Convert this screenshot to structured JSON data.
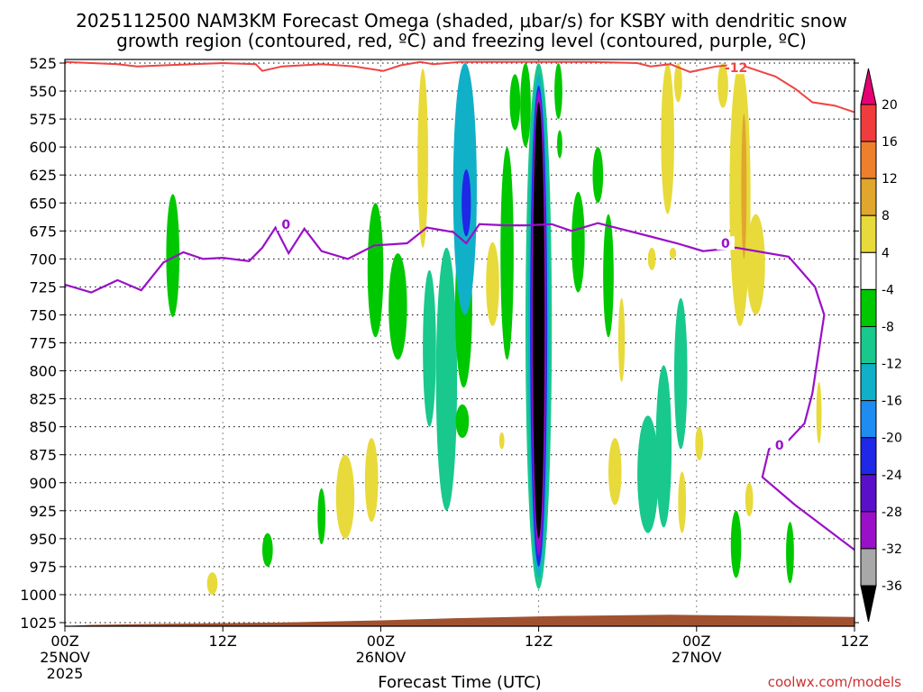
{
  "chart_data": {
    "type": "heatmap",
    "title_line1": "2025112500 NAM3KM Forecast Omega (shaded, μbar/s) for KSBY with dendritic snow",
    "title_line2": "growth region (contoured, red, ºC) and freezing level (contoured, purple, ºC)",
    "xlabel": "Forecast Time (UTC)",
    "credit": "coolwx.com/models",
    "x_ticks": [
      {
        "hour": 0,
        "l1": "00Z",
        "l2": "25NOV",
        "l3": "2025"
      },
      {
        "hour": 12,
        "l1": "12Z",
        "l2": "",
        "l3": ""
      },
      {
        "hour": 24,
        "l1": "00Z",
        "l2": "26NOV",
        "l3": ""
      },
      {
        "hour": 36,
        "l1": "12Z",
        "l2": "",
        "l3": ""
      },
      {
        "hour": 48,
        "l1": "00Z",
        "l2": "27NOV",
        "l3": ""
      },
      {
        "hour": 60,
        "l1": "12Z",
        "l2": "",
        "l3": ""
      }
    ],
    "xlim": [
      0,
      60
    ],
    "y_ticks": [
      525,
      550,
      575,
      600,
      625,
      650,
      675,
      700,
      725,
      750,
      775,
      800,
      825,
      850,
      875,
      900,
      925,
      950,
      975,
      1000,
      1025
    ],
    "ylim": [
      525,
      1030
    ],
    "grid": true,
    "colorbar": {
      "labels": [
        "20",
        "16",
        "12",
        "8",
        "4",
        "-4",
        "-8",
        "-12",
        "-16",
        "-20",
        "-24",
        "-28",
        "-32",
        "-36"
      ],
      "colors": [
        "#e60073",
        "#f03c3c",
        "#ee7f2d",
        "#e0a62d",
        "#e8da3a",
        "#ffffff",
        "#00c800",
        "#19c88c",
        "#10b0c8",
        "#1e8cf0",
        "#1e28e6",
        "#5a10c8",
        "#9a10c8",
        "#a8a8a8",
        "#000000"
      ]
    },
    "omega_cells": [
      {
        "t": 8.2,
        "p_top": 642,
        "p_bot": 752,
        "w": 1.0,
        "v": -6
      },
      {
        "t": 11.2,
        "p_top": 980,
        "p_bot": 1000,
        "w": 0.8,
        "v": 4
      },
      {
        "t": 15.4,
        "p_top": 945,
        "p_bot": 975,
        "w": 0.8,
        "v": -6
      },
      {
        "t": 19.5,
        "p_top": 905,
        "p_bot": 955,
        "w": 0.6,
        "v": -6
      },
      {
        "t": 21.3,
        "p_top": 875,
        "p_bot": 950,
        "w": 1.4,
        "v": 6
      },
      {
        "t": 23.3,
        "p_top": 860,
        "p_bot": 935,
        "w": 1.0,
        "v": 5
      },
      {
        "t": 23.6,
        "p_top": 650,
        "p_bot": 770,
        "w": 1.2,
        "v": -6
      },
      {
        "t": 25.3,
        "p_top": 695,
        "p_bot": 790,
        "w": 1.4,
        "v": -7
      },
      {
        "t": 27.2,
        "p_top": 530,
        "p_bot": 690,
        "w": 0.8,
        "v": 5
      },
      {
        "t": 27.7,
        "p_top": 710,
        "p_bot": 850,
        "w": 1.0,
        "v": -8
      },
      {
        "t": 29.0,
        "p_top": 690,
        "p_bot": 925,
        "w": 1.6,
        "v": -10
      },
      {
        "t": 30.3,
        "p_top": 670,
        "p_bot": 815,
        "w": 1.3,
        "v": -7
      },
      {
        "t": 30.2,
        "p_top": 830,
        "p_bot": 860,
        "w": 1.0,
        "v": -6
      },
      {
        "t": 30.4,
        "p_top": 525,
        "p_bot": 750,
        "w": 1.8,
        "v": -12
      },
      {
        "t": 30.5,
        "p_top": 620,
        "p_bot": 680,
        "w": 0.7,
        "v": -22
      },
      {
        "t": 32.5,
        "p_top": 685,
        "p_bot": 760,
        "w": 1.0,
        "v": 6
      },
      {
        "t": 33.6,
        "p_top": 600,
        "p_bot": 790,
        "w": 1.0,
        "v": -7
      },
      {
        "t": 33.2,
        "p_top": 855,
        "p_bot": 870,
        "w": 0.4,
        "v": 5
      },
      {
        "t": 34.2,
        "p_top": 535,
        "p_bot": 585,
        "w": 0.8,
        "v": -7
      },
      {
        "t": 35.0,
        "p_top": 525,
        "p_bot": 600,
        "w": 0.8,
        "v": -7
      },
      {
        "t": 36.0,
        "p_top": 525,
        "p_bot": 995,
        "w": 2.0,
        "v": -8
      },
      {
        "t": 36.0,
        "p_top": 535,
        "p_bot": 985,
        "w": 1.6,
        "v": -14
      },
      {
        "t": 36.0,
        "p_top": 545,
        "p_bot": 975,
        "w": 1.3,
        "v": -22
      },
      {
        "t": 36.0,
        "p_top": 550,
        "p_bot": 965,
        "w": 1.1,
        "v": -30
      },
      {
        "t": 36.0,
        "p_top": 560,
        "p_bot": 950,
        "w": 0.9,
        "v": -40
      },
      {
        "t": 37.5,
        "p_top": 525,
        "p_bot": 575,
        "w": 0.6,
        "v": -6
      },
      {
        "t": 37.6,
        "p_top": 585,
        "p_bot": 610,
        "w": 0.4,
        "v": -6
      },
      {
        "t": 39.0,
        "p_top": 640,
        "p_bot": 730,
        "w": 1.0,
        "v": -6
      },
      {
        "t": 40.5,
        "p_top": 600,
        "p_bot": 650,
        "w": 0.8,
        "v": -6
      },
      {
        "t": 41.3,
        "p_top": 660,
        "p_bot": 770,
        "w": 0.8,
        "v": -7
      },
      {
        "t": 42.3,
        "p_top": 735,
        "p_bot": 810,
        "w": 0.5,
        "v": 5
      },
      {
        "t": 41.8,
        "p_top": 860,
        "p_bot": 920,
        "w": 1.0,
        "v": 5
      },
      {
        "t": 44.3,
        "p_top": 840,
        "p_bot": 945,
        "w": 1.6,
        "v": -8
      },
      {
        "t": 44.6,
        "p_top": 690,
        "p_bot": 710,
        "w": 0.6,
        "v": 5
      },
      {
        "t": 45.8,
        "p_top": 525,
        "p_bot": 660,
        "w": 1.0,
        "v": 5
      },
      {
        "t": 45.5,
        "p_top": 795,
        "p_bot": 940,
        "w": 1.2,
        "v": -8
      },
      {
        "t": 46.8,
        "p_top": 735,
        "p_bot": 870,
        "w": 1.0,
        "v": -8
      },
      {
        "t": 46.9,
        "p_top": 890,
        "p_bot": 945,
        "w": 0.6,
        "v": 5
      },
      {
        "t": 46.2,
        "p_top": 690,
        "p_bot": 700,
        "w": 0.5,
        "v": 6
      },
      {
        "t": 46.6,
        "p_top": 525,
        "p_bot": 560,
        "w": 0.6,
        "v": 5
      },
      {
        "t": 48.2,
        "p_top": 850,
        "p_bot": 880,
        "w": 0.6,
        "v": 5
      },
      {
        "t": 50.0,
        "p_top": 525,
        "p_bot": 565,
        "w": 0.8,
        "v": 5
      },
      {
        "t": 50.0,
        "p_top": 530,
        "p_bot": 545,
        "w": 0.4,
        "v": 7
      },
      {
        "t": 51.3,
        "p_top": 525,
        "p_bot": 760,
        "w": 1.6,
        "v": 5
      },
      {
        "t": 51.6,
        "p_top": 570,
        "p_bot": 700,
        "w": 0.4,
        "v": 8
      },
      {
        "t": 52.5,
        "p_top": 660,
        "p_bot": 750,
        "w": 1.4,
        "v": 5
      },
      {
        "t": 52.0,
        "p_top": 900,
        "p_bot": 930,
        "w": 0.6,
        "v": 5
      },
      {
        "t": 51.0,
        "p_top": 925,
        "p_bot": 985,
        "w": 0.8,
        "v": -6
      },
      {
        "t": 55.1,
        "p_top": 935,
        "p_bot": 990,
        "w": 0.6,
        "v": -6
      },
      {
        "t": 57.3,
        "p_top": 810,
        "p_bot": 865,
        "w": 0.4,
        "v": 5
      }
    ],
    "dgz_contour": {
      "label": "-12",
      "points": [
        [
          0,
          524
        ],
        [
          4.0,
          526
        ],
        [
          5.5,
          528
        ],
        [
          7.5,
          527
        ],
        [
          12,
          525
        ],
        [
          14.5,
          526
        ],
        [
          15.0,
          532
        ],
        [
          16.5,
          528
        ],
        [
          19.5,
          526
        ],
        [
          22.0,
          528
        ],
        [
          24.2,
          532
        ],
        [
          25.5,
          527
        ],
        [
          27.0,
          524
        ],
        [
          28.0,
          526
        ],
        [
          30.0,
          524
        ],
        [
          34.0,
          524
        ],
        [
          40.0,
          524
        ],
        [
          43.5,
          525
        ],
        [
          44.5,
          528
        ],
        [
          46.0,
          526
        ],
        [
          47.5,
          533
        ],
        [
          49.5,
          528
        ],
        [
          51.2,
          526
        ],
        [
          52.2,
          530
        ],
        [
          54.0,
          537
        ],
        [
          55.5,
          548
        ],
        [
          56.8,
          560
        ],
        [
          58.5,
          563
        ],
        [
          60,
          569
        ]
      ]
    },
    "freezing_contour": {
      "label": "0",
      "points": [
        [
          0,
          723
        ],
        [
          2.0,
          730
        ],
        [
          4.0,
          719
        ],
        [
          5.8,
          728
        ],
        [
          7.5,
          703
        ],
        [
          9.0,
          694
        ],
        [
          10.5,
          700
        ],
        [
          12.0,
          699
        ],
        [
          14.0,
          702
        ],
        [
          15.0,
          690
        ],
        [
          16.0,
          672
        ],
        [
          17.0,
          695
        ],
        [
          18.2,
          673
        ],
        [
          19.5,
          693
        ],
        [
          21.5,
          700
        ],
        [
          23.5,
          688
        ],
        [
          26.0,
          686
        ],
        [
          27.5,
          672
        ],
        [
          29.5,
          676
        ],
        [
          30.5,
          686
        ],
        [
          31.5,
          669
        ],
        [
          33.5,
          670
        ],
        [
          35.0,
          670
        ],
        [
          37.0,
          669
        ],
        [
          38.5,
          675
        ],
        [
          40.5,
          668
        ],
        [
          42.5,
          674
        ],
        [
          44.5,
          680
        ],
        [
          46.5,
          686
        ],
        [
          48.5,
          693
        ],
        [
          51.0,
          690
        ],
        [
          55.0,
          698
        ],
        [
          57.0,
          725
        ],
        [
          57.7,
          750
        ],
        [
          56.8,
          820
        ],
        [
          56.2,
          847
        ],
        [
          55.0,
          862
        ],
        [
          53.5,
          870
        ],
        [
          53.0,
          895
        ],
        [
          55.5,
          920
        ],
        [
          60,
          960
        ]
      ]
    },
    "terrain": {
      "color": "#a05230",
      "points": [
        [
          0,
          1028
        ],
        [
          2,
          1027
        ],
        [
          8,
          1026
        ],
        [
          16,
          1025
        ],
        [
          24,
          1023
        ],
        [
          30,
          1021
        ],
        [
          38,
          1019
        ],
        [
          46,
          1018
        ],
        [
          54,
          1019
        ],
        [
          60,
          1020
        ]
      ]
    }
  }
}
